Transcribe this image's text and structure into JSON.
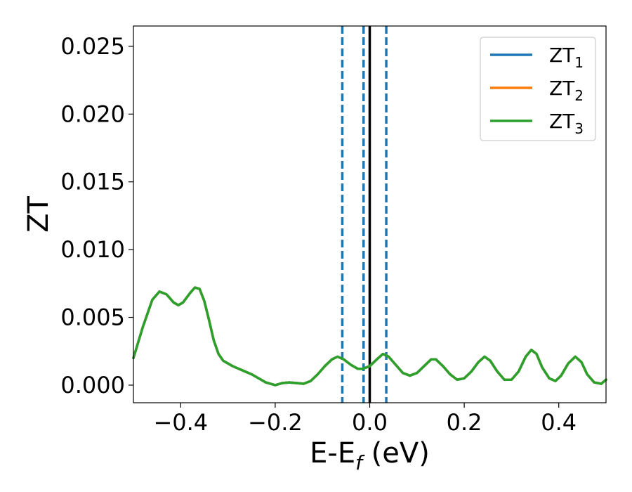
{
  "chart_data": {
    "type": "line",
    "xlabel": {
      "base": "E-E",
      "sub": "f",
      "tail": " (eV)"
    },
    "ylabel": "ZT",
    "xlim": [
      -0.5,
      0.5
    ],
    "ylim": [
      -0.0013,
      0.0265
    ],
    "x_ticks": [
      -0.4,
      -0.2,
      0.0,
      0.2,
      0.4
    ],
    "x_tick_labels": [
      "−0.4",
      "−0.2",
      "0.0",
      "0.2",
      "0.4"
    ],
    "y_ticks": [
      0.0,
      0.005,
      0.01,
      0.015,
      0.02,
      0.025
    ],
    "y_tick_labels": [
      "0.000",
      "0.005",
      "0.010",
      "0.015",
      "0.020",
      "0.025"
    ],
    "grid": false,
    "legend_position": "top-right",
    "series": [
      {
        "name": "ZT",
        "sub": "1",
        "color": "#1f77b4"
      },
      {
        "name": "ZT",
        "sub": "2",
        "color": "#ff7f0e"
      },
      {
        "name": "ZT",
        "sub": "3",
        "color": "#2ca02c"
      }
    ],
    "curve_points": [
      [
        -0.5,
        0.002
      ],
      [
        -0.48,
        0.0043
      ],
      [
        -0.46,
        0.0063
      ],
      [
        -0.445,
        0.0069
      ],
      [
        -0.43,
        0.0067
      ],
      [
        -0.415,
        0.0061
      ],
      [
        -0.405,
        0.0059
      ],
      [
        -0.395,
        0.0061
      ],
      [
        -0.38,
        0.0068
      ],
      [
        -0.37,
        0.0072
      ],
      [
        -0.36,
        0.0071
      ],
      [
        -0.35,
        0.0062
      ],
      [
        -0.34,
        0.0048
      ],
      [
        -0.33,
        0.0033
      ],
      [
        -0.32,
        0.0023
      ],
      [
        -0.31,
        0.0018
      ],
      [
        -0.29,
        0.0014
      ],
      [
        -0.27,
        0.0011
      ],
      [
        -0.25,
        0.0008
      ],
      [
        -0.235,
        0.0005
      ],
      [
        -0.22,
        0.0002
      ],
      [
        -0.2,
        0.0
      ],
      [
        -0.185,
        0.00015
      ],
      [
        -0.17,
        0.0002
      ],
      [
        -0.155,
        0.00015
      ],
      [
        -0.14,
        0.0001
      ],
      [
        -0.125,
        0.0003
      ],
      [
        -0.11,
        0.0008
      ],
      [
        -0.095,
        0.0014
      ],
      [
        -0.08,
        0.0019
      ],
      [
        -0.068,
        0.0021
      ],
      [
        -0.055,
        0.0019
      ],
      [
        -0.04,
        0.0015
      ],
      [
        -0.025,
        0.0012
      ],
      [
        -0.015,
        0.0012
      ],
      [
        0.0,
        0.0014
      ],
      [
        0.015,
        0.0019
      ],
      [
        0.028,
        0.0023
      ],
      [
        0.04,
        0.0021
      ],
      [
        0.055,
        0.0015
      ],
      [
        0.07,
        0.0009
      ],
      [
        0.085,
        0.0007
      ],
      [
        0.1,
        0.0009
      ],
      [
        0.115,
        0.0014
      ],
      [
        0.13,
        0.0019
      ],
      [
        0.14,
        0.0019
      ],
      [
        0.155,
        0.0014
      ],
      [
        0.17,
        0.0008
      ],
      [
        0.185,
        0.0004
      ],
      [
        0.2,
        0.0005
      ],
      [
        0.215,
        0.001
      ],
      [
        0.23,
        0.0017
      ],
      [
        0.243,
        0.0021
      ],
      [
        0.255,
        0.0018
      ],
      [
        0.27,
        0.001
      ],
      [
        0.285,
        0.0004
      ],
      [
        0.3,
        0.0004
      ],
      [
        0.315,
        0.001
      ],
      [
        0.33,
        0.0021
      ],
      [
        0.342,
        0.0026
      ],
      [
        0.353,
        0.0023
      ],
      [
        0.365,
        0.0013
      ],
      [
        0.38,
        0.0005
      ],
      [
        0.393,
        0.0003
      ],
      [
        0.405,
        0.0007
      ],
      [
        0.42,
        0.0016
      ],
      [
        0.435,
        0.0021
      ],
      [
        0.448,
        0.0017
      ],
      [
        0.46,
        0.0008
      ],
      [
        0.475,
        0.0002
      ],
      [
        0.49,
        0.0001
      ],
      [
        0.5,
        0.0004
      ]
    ],
    "vlines": [
      {
        "x": -0.058,
        "style": "dashed",
        "color": "#1f77b4"
      },
      {
        "x": -0.013,
        "style": "dashed",
        "color": "#1f77b4"
      },
      {
        "x": 0.0,
        "style": "solid",
        "color": "#000000"
      },
      {
        "x": 0.035,
        "style": "dashed",
        "color": "#1f77b4"
      }
    ]
  }
}
